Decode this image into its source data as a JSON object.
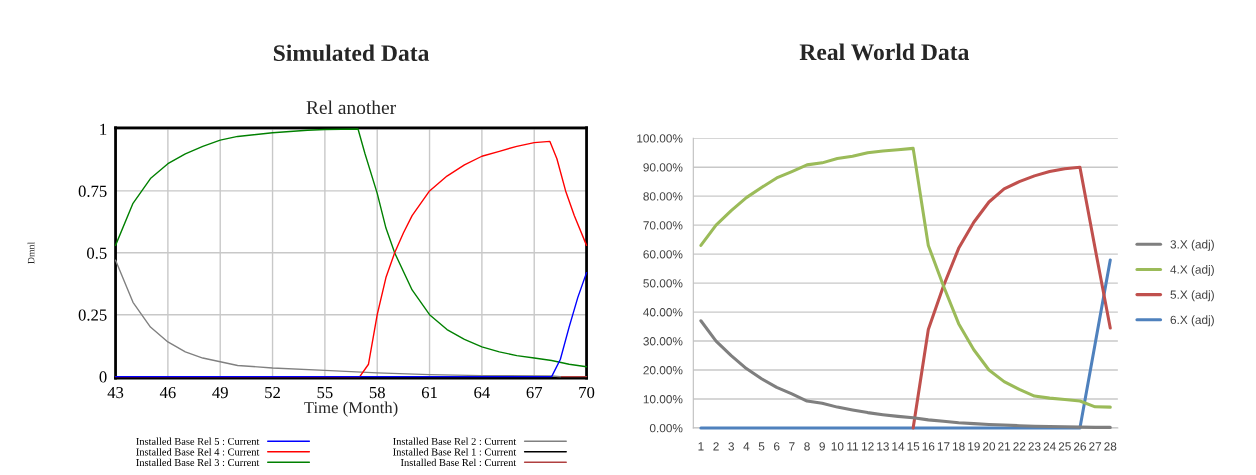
{
  "chart_data": [
    {
      "type": "line",
      "title": "Simulated Data",
      "subtitle": "Rel another",
      "xlabel": "Time (Month)",
      "ylabel": "Dmnl",
      "xlim": [
        43,
        70
      ],
      "xticks": [
        43,
        46,
        49,
        52,
        55,
        58,
        61,
        64,
        67,
        70
      ],
      "ylim": [
        -0.006,
        1.005
      ],
      "yticks": [
        0,
        0.25,
        0.5,
        0.75,
        1
      ],
      "grid": true,
      "legend": "bottom",
      "series": [
        {
          "name": "Installed Base Rel 5 : Current",
          "color": "#0000ff",
          "x": [
            43,
            68,
            68.5,
            69,
            69.5,
            70
          ],
          "values": [
            0,
            0,
            0.07,
            0.2,
            0.32,
            0.42
          ]
        },
        {
          "name": "Installed Base Rel 4 : Current",
          "color": "#ff0000",
          "x": [
            43,
            57,
            57.5,
            58,
            58.5,
            59,
            59.5,
            60,
            61,
            62,
            63,
            64,
            65,
            66,
            67,
            67.9,
            68.3,
            68.8,
            69.3,
            70
          ],
          "values": [
            0,
            0,
            0.05,
            0.25,
            0.4,
            0.5,
            0.58,
            0.65,
            0.75,
            0.81,
            0.855,
            0.89,
            0.91,
            0.93,
            0.945,
            0.95,
            0.88,
            0.75,
            0.65,
            0.53
          ]
        },
        {
          "name": "Installed Base Rel 3 : Current",
          "color": "#008000",
          "x": [
            43,
            44,
            45,
            46,
            47,
            48,
            49,
            50,
            52,
            54,
            55,
            56.9,
            57.3,
            58,
            58.5,
            59,
            60,
            61,
            62,
            63,
            64,
            65,
            66,
            67,
            68,
            69,
            70
          ],
          "values": [
            0.53,
            0.7,
            0.8,
            0.86,
            0.9,
            0.93,
            0.955,
            0.97,
            0.985,
            0.995,
            0.998,
            1.0,
            0.9,
            0.74,
            0.6,
            0.5,
            0.35,
            0.25,
            0.19,
            0.15,
            0.12,
            0.1,
            0.085,
            0.075,
            0.065,
            0.05,
            0.04
          ]
        },
        {
          "name": "Installed Base Rel 2 : Current",
          "color": "#808080",
          "x": [
            43,
            44,
            45,
            46,
            47,
            48,
            49,
            50,
            52,
            55,
            58,
            61,
            64,
            68,
            68.5
          ],
          "values": [
            0.47,
            0.3,
            0.2,
            0.14,
            0.1,
            0.075,
            0.06,
            0.045,
            0.035,
            0.025,
            0.015,
            0.008,
            0.004,
            0.003,
            0
          ]
        },
        {
          "name": "Installed Base Rel 1 : Current",
          "color": "#000000"
        },
        {
          "name": "Installed Base Rel : Current",
          "color": "#b04040",
          "x": [
            68.3,
            70
          ],
          "values": [
            0,
            0
          ]
        }
      ]
    },
    {
      "type": "line",
      "title": "Real World Data",
      "categories": [
        "1",
        "2",
        "3",
        "4",
        "5",
        "6",
        "7",
        "8",
        "9",
        "10",
        "11",
        "12",
        "13",
        "14",
        "15",
        "16",
        "17",
        "18",
        "19",
        "20",
        "21",
        "22",
        "23",
        "24",
        "25",
        "26",
        "27",
        "28"
      ],
      "ylim": [
        0,
        100
      ],
      "yticks": [
        {
          "value": 0,
          "label": "0.00%"
        },
        {
          "value": 10,
          "label": "10.00%"
        },
        {
          "value": 20,
          "label": "20.00%"
        },
        {
          "value": 30,
          "label": "30.00%"
        },
        {
          "value": 40,
          "label": "40.00%"
        },
        {
          "value": 50,
          "label": "50.00%"
        },
        {
          "value": 60,
          "label": "60.00%"
        },
        {
          "value": 70,
          "label": "70.00%"
        },
        {
          "value": 80,
          "label": "80.00%"
        },
        {
          "value": 90,
          "label": "90.00%"
        },
        {
          "value": 100,
          "label": "100.00%"
        }
      ],
      "grid": "y",
      "legend": "right",
      "series": [
        {
          "name": "3.X (adj)",
          "color": "#7f7f7f",
          "values": [
            37,
            30,
            25,
            20.5,
            17,
            14,
            11.8,
            9.3,
            8.5,
            7.2,
            6.2,
            5.3,
            4.6,
            4,
            3.5,
            2.8,
            2.3,
            1.8,
            1.5,
            1.2,
            1.0,
            0.8,
            0.6,
            0.5,
            0.4,
            0.3,
            0.2,
            0.2
          ]
        },
        {
          "name": "4.X (adj)",
          "color": "#9bbb59",
          "values": [
            63,
            70,
            75,
            79.5,
            83,
            86.3,
            88.5,
            90.8,
            91.5,
            93,
            93.8,
            95,
            95.6,
            96,
            96.5,
            63,
            49,
            36,
            27,
            20,
            16,
            13.3,
            11,
            10.3,
            9.8,
            9.3,
            7.3,
            7.2
          ]
        },
        {
          "name": "5.X (adj)",
          "color": "#c0504d",
          "values": [
            null,
            null,
            null,
            null,
            null,
            null,
            null,
            null,
            null,
            null,
            null,
            null,
            null,
            null,
            0,
            34,
            49,
            62,
            71,
            78,
            82.5,
            85,
            87,
            88.5,
            89.5,
            90,
            62,
            34.5
          ]
        },
        {
          "name": "6.X (adj)",
          "color": "#4f81bd",
          "values": [
            0,
            0,
            0,
            0,
            0,
            0,
            0,
            0,
            0,
            0,
            0,
            0,
            0,
            0,
            0,
            0,
            0,
            0,
            0,
            0,
            0,
            0,
            0,
            0,
            0,
            0,
            29,
            58
          ]
        }
      ]
    }
  ]
}
